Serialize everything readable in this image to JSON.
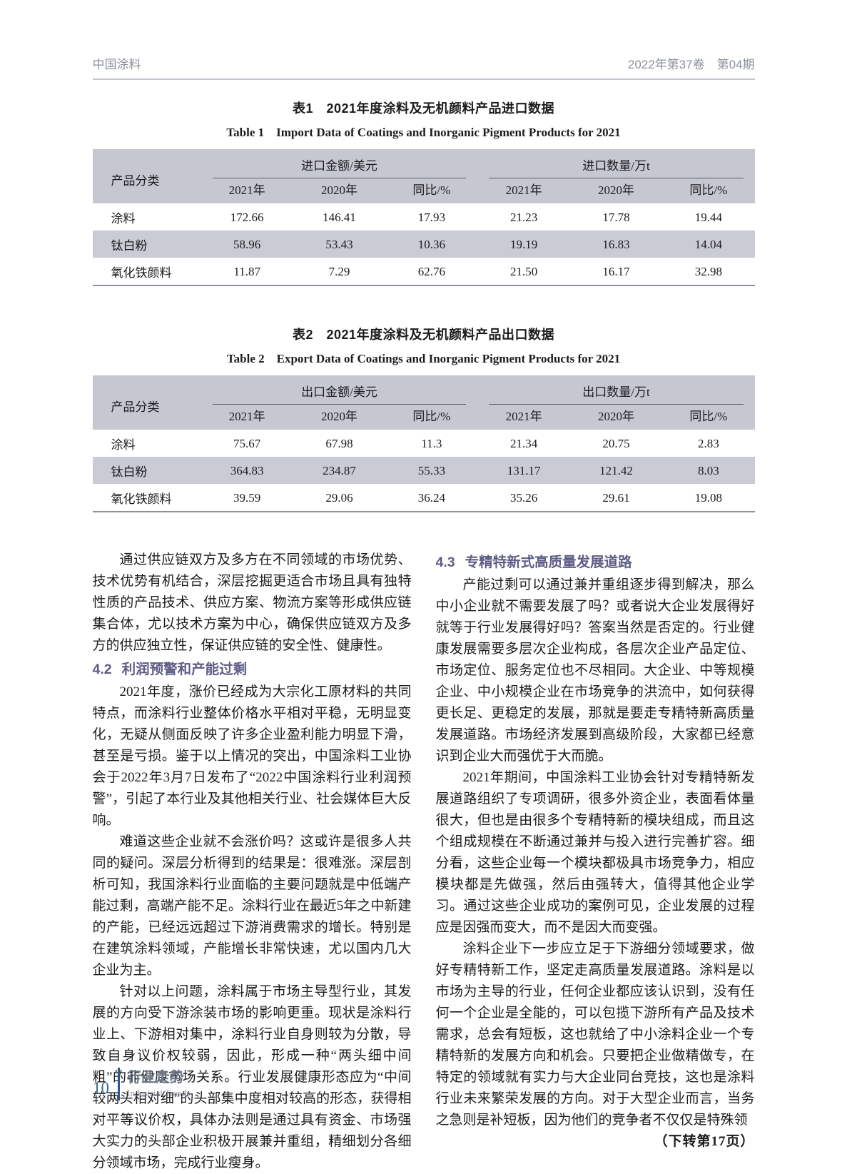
{
  "header": {
    "journal": "中国涂料",
    "issue": "2022年第37卷　第04期"
  },
  "tables": [
    {
      "title_cn": "表1　2021年度涂料及无机颜料产品进口数据",
      "title_en": "Table 1　Import Data of Coatings and Inorganic Pigment Products for 2021",
      "category_header": "产品分类",
      "group1": "进口金额/美元",
      "group2": "进口数量/万t",
      "subheaders": [
        "2021年",
        "2020年",
        "同比/%",
        "2021年",
        "2020年",
        "同比/%"
      ],
      "rows": [
        {
          "name": "涂料",
          "values": [
            "172.66",
            "146.41",
            "17.93",
            "21.23",
            "17.78",
            "19.44"
          ]
        },
        {
          "name": "钛白粉",
          "values": [
            "58.96",
            "53.43",
            "10.36",
            "19.19",
            "16.83",
            "14.04"
          ]
        },
        {
          "name": "氧化铁颜料",
          "values": [
            "11.87",
            "7.29",
            "62.76",
            "21.50",
            "16.17",
            "32.98"
          ]
        }
      ]
    },
    {
      "title_cn": "表2　2021年度涂料及无机颜料产品出口数据",
      "title_en": "Table 2　Export Data of Coatings and Inorganic Pigment Products for 2021",
      "category_header": "产品分类",
      "group1": "出口金额/美元",
      "group2": "出口数量/万t",
      "subheaders": [
        "2021年",
        "2020年",
        "同比/%",
        "2021年",
        "2020年",
        "同比/%"
      ],
      "rows": [
        {
          "name": "涂料",
          "values": [
            "75.67",
            "67.98",
            "11.3",
            "21.34",
            "20.75",
            "2.83"
          ]
        },
        {
          "name": "钛白粉",
          "values": [
            "364.83",
            "234.87",
            "55.33",
            "131.17",
            "121.42",
            "8.03"
          ]
        },
        {
          "name": "氧化铁颜料",
          "values": [
            "39.59",
            "29.06",
            "36.24",
            "35.26",
            "29.61",
            "19.08"
          ]
        }
      ]
    }
  ],
  "article": {
    "left": {
      "p1": "通过供应链双方及多方在不同领域的市场优势、技术优势有机结合，深层挖掘更适合市场且具有独特性质的产品技术、供应方案、物流方案等形成供应链集合体，尤以技术方案为中心，确保供应链双方及多方的供应独立性，保证供应链的安全性、健康性。",
      "h42_num": "4.2",
      "h42_title": "利润预警和产能过剩",
      "p2": "2021年度，涨价已经成为大宗化工原材料的共同特点，而涂料行业整体价格水平相对平稳，无明显变化，无疑从侧面反映了许多企业盈利能力明显下滑，甚至是亏损。鉴于以上情况的突出，中国涂料工业协会于2022年3月7日发布了“2022中国涂料行业利润预警”，引起了本行业及其他相关行业、社会媒体巨大反响。",
      "p3": "难道这些企业就不会涨价吗？这或许是很多人共同的疑问。深层分析得到的结果是：很难涨。深层剖析可知，我国涂料行业面临的主要问题就是中低端产能过剩，高端产能不足。涂料行业在最近5年之中新建的产能，已经远远超过下游消费需求的增长。特别是在建筑涂料领域，产能增长非常快速，尤以国内几大企业为主。",
      "p4": "针对以上问题，涂料属于市场主导型行业，其发展的方向受下游涂装市场的影响更重。现状是涂料行业上、下游相对集中，涂料行业自身则较为分散，导致自身议价权较弱，因此，形成一种“两头细中间粗”的非健康市场关系。行业发展健康形态应为“中间较两头相对细”的头部集中度相对较高的形态，获得相对平等议价权，具体办法则是通过具有资金、市场强大实力的头部企业积极开展兼并重组，精细划分各细分领域市场，完成行业瘦身。"
    },
    "right": {
      "h43_num": "4.3",
      "h43_title": "专精特新式高质量发展道路",
      "p1": "产能过剩可以通过兼并重组逐步得到解决，那么中小企业就不需要发展了吗？或者说大企业发展得好就等于行业发展得好吗？答案当然是否定的。行业健康发展需要多层次企业构成，各层次企业产品定位、市场定位、服务定位也不尽相同。大企业、中等规模企业、中小规模企业在市场竞争的洪流中，如何获得更长足、更稳定的发展，那就是要走专精特新高质量发展道路。市场经济发展到高级阶段，大家都已经意识到企业大而强优于大而脆。",
      "p2": "2021年期间，中国涂料工业协会针对专精特新发展道路组织了专项调研，很多外资企业，表面看体量很大，但也是由很多个专精特新的模块组成，而且这个组成规模在不断通过兼并与投入进行完善扩容。细分看，这些企业每一个模块都极具市场竞争力，相应模块都是先做强，然后由强转大，值得其他企业学习。通过这些企业成功的案例可见，企业发展的过程应是因强而变大，而不是因大而变强。",
      "p3": "涂料企业下一步应立足于下游细分领域要求，做好专精特新工作，坚定走高质量发展道路。涂料是以市场为主导的行业，任何企业都应该认识到，没有任何一个企业是全能的，可以包揽下游所有产品及技术需求，总会有短板，这也就给了中小涂料企业一个专精特新的发展方向和机会。只要把企业做精做专，在特定的领域就有实力与大企业同台竞技，这也是涂料行业未来繁荣发展的方向。对于大型企业而言，当务之急则是补短板，因为他们的竞争者不仅仅是特殊领",
      "continuation": "（下转第17页）"
    }
  },
  "footer": {
    "page_number": "10",
    "section_cn": "行业走势",
    "section_en": "Industrial Trends"
  }
}
